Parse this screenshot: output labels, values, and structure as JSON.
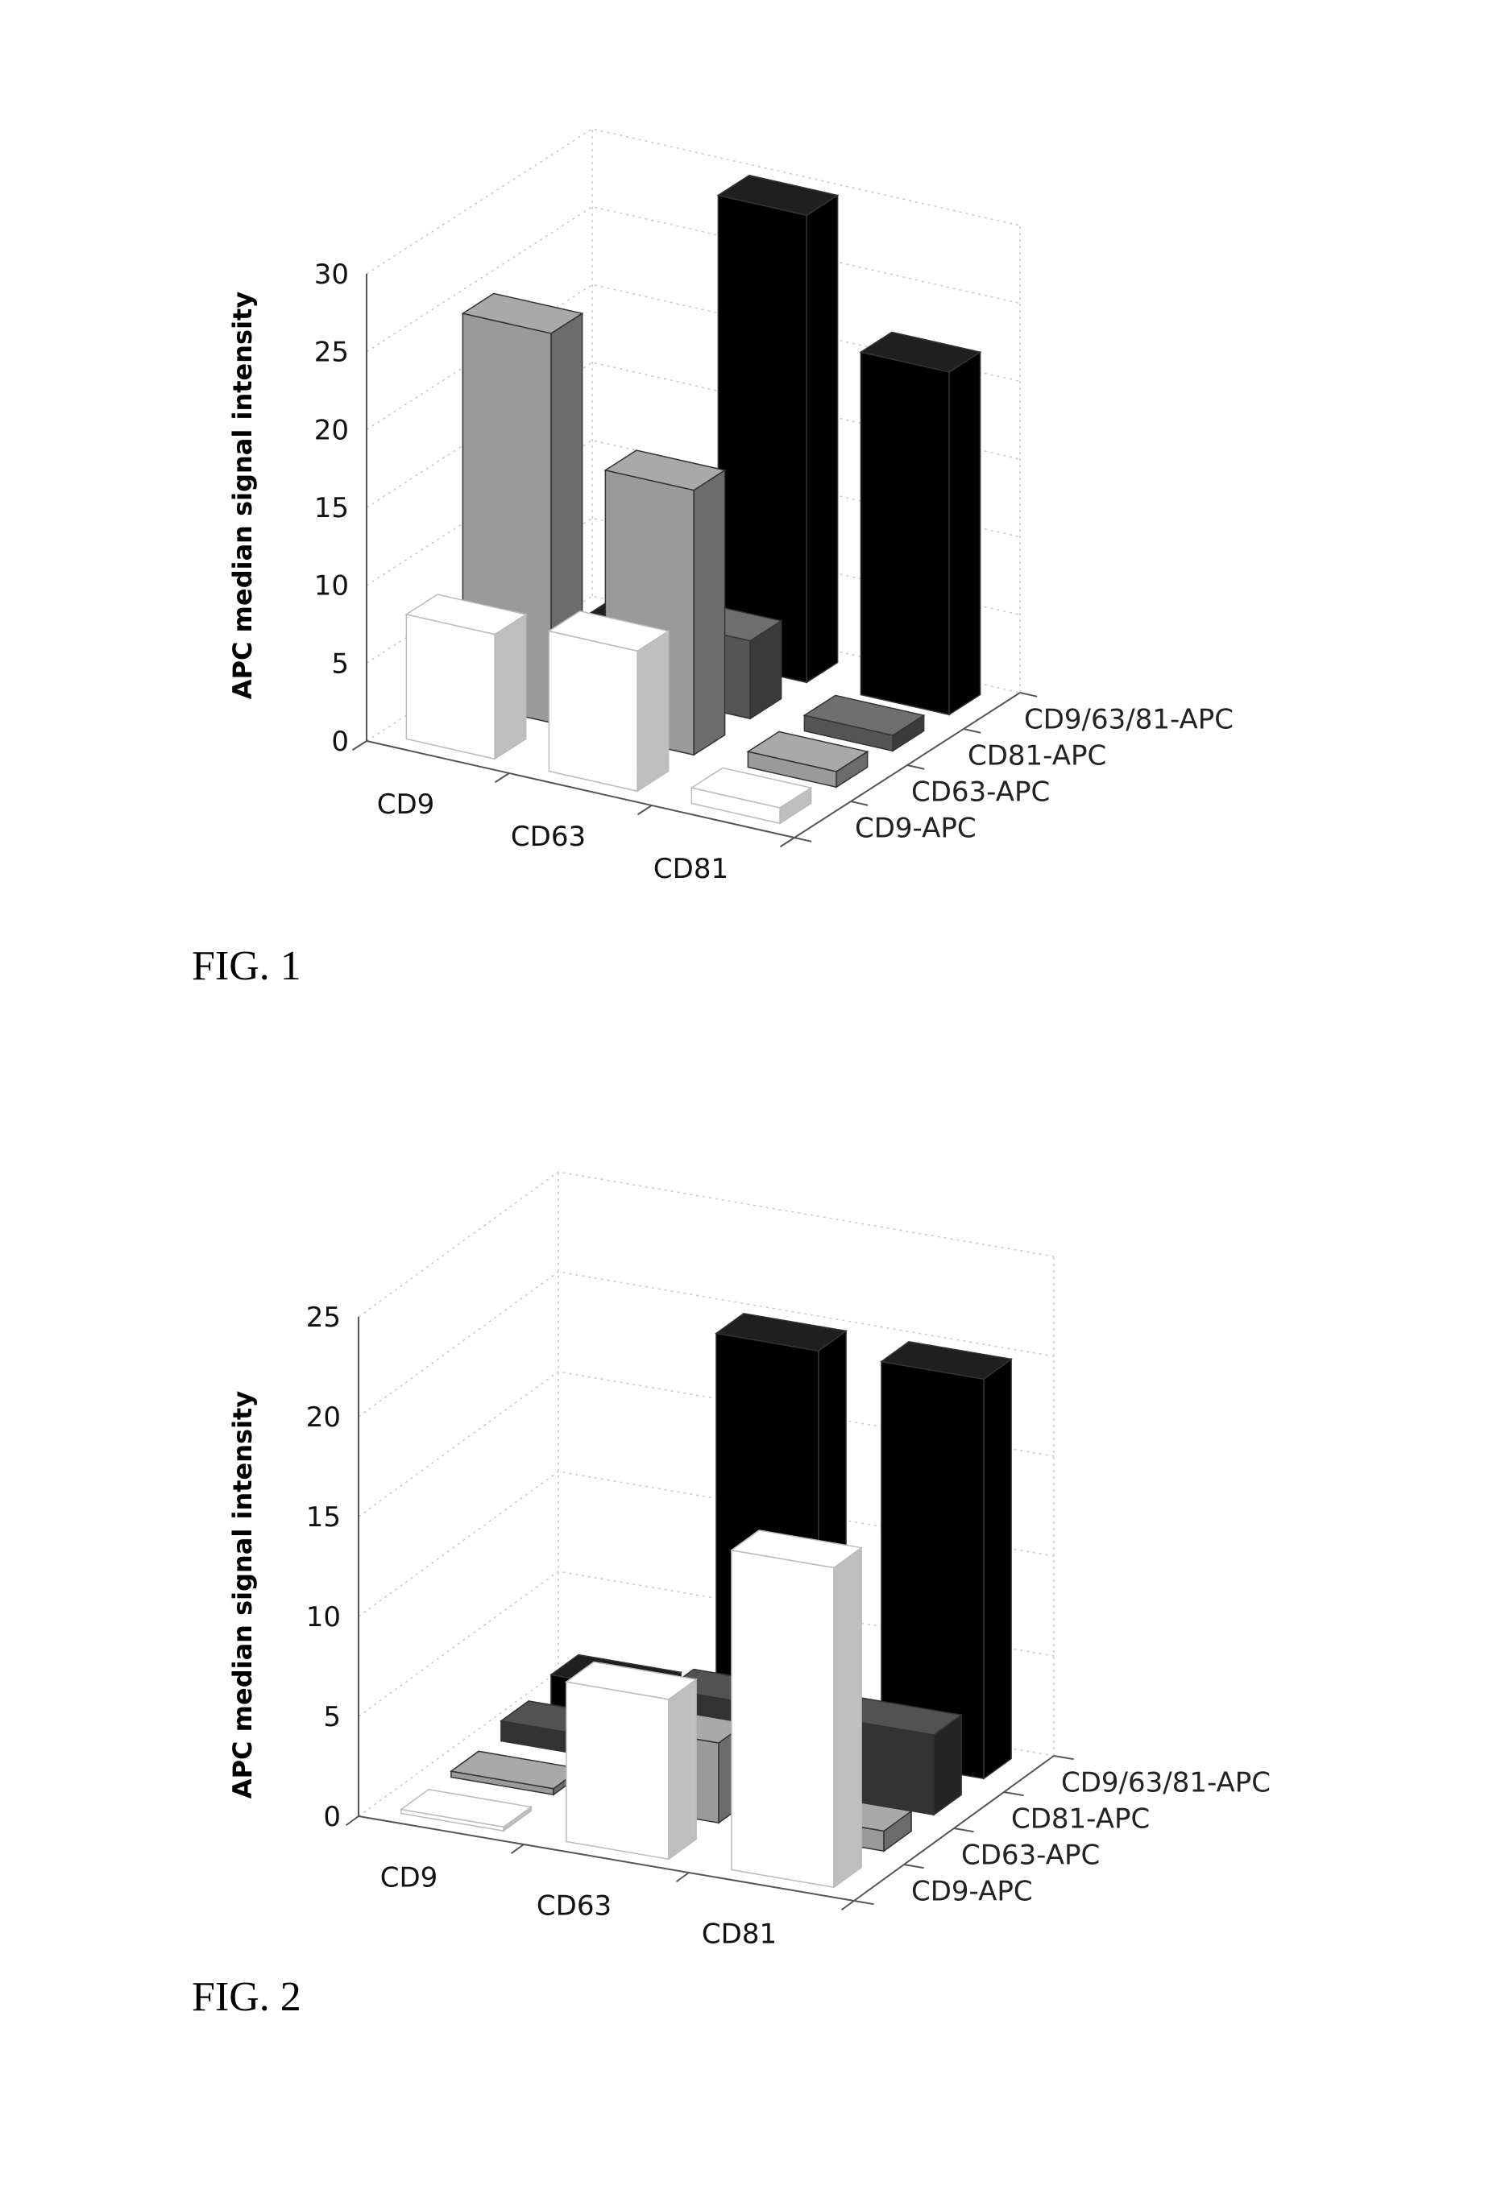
{
  "figures": [
    {
      "caption": "FIG. 1",
      "chart_data": {
        "type": "bar",
        "title": "",
        "xlabel": "",
        "ylabel": "APC median signal intensity",
        "ylim": [
          0,
          30
        ],
        "yticks": [
          "0",
          "5",
          "10",
          "15",
          "20",
          "25",
          "30"
        ],
        "categories": [
          "CD9",
          "CD63",
          "CD81"
        ],
        "series": [
          {
            "name": "CD9-APC",
            "color": "#ffffff",
            "values": [
              8,
              9,
              1
            ]
          },
          {
            "name": "CD63-APC",
            "color": "#9a9a9a",
            "values": [
              25,
              17,
              1
            ]
          },
          {
            "name": "CD81-APC",
            "color": "#555555",
            "values": [
              1,
              5,
              1
            ]
          },
          {
            "name": "CD9/63/81-APC",
            "color": "#000000",
            "values": [
              0.5,
              30,
              22
            ]
          }
        ],
        "grid": true,
        "projection": "3d"
      }
    },
    {
      "caption": "FIG. 2",
      "chart_data": {
        "type": "bar",
        "title": "",
        "xlabel": "",
        "ylabel": "APC median signal intensity",
        "ylim": [
          0,
          25
        ],
        "yticks": [
          "0",
          "5",
          "10",
          "15",
          "20",
          "25"
        ],
        "categories": [
          "CD9",
          "CD63",
          "CD81"
        ],
        "series": [
          {
            "name": "CD9-APC",
            "color": "#ffffff",
            "values": [
              0.2,
              8,
              16
            ]
          },
          {
            "name": "CD63-APC",
            "color": "#9a9a9a",
            "values": [
              0.3,
              4,
              1
            ]
          },
          {
            "name": "CD81-APC",
            "color": "#333333",
            "values": [
              1,
              4,
              4
            ]
          },
          {
            "name": "CD9/63/81-APC",
            "color": "#000000",
            "values": [
              1.5,
              20,
              20
            ]
          }
        ],
        "grid": true,
        "projection": "3d"
      }
    }
  ]
}
